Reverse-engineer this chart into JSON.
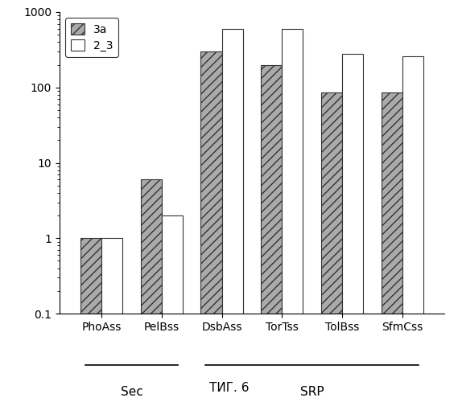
{
  "categories": [
    "PhoAss",
    "PelBss",
    "DsbAss",
    "TorTss",
    "TolBss",
    "SfmCss"
  ],
  "group_info": [
    {
      "label": "Sec",
      "start": 0,
      "end": 1
    },
    {
      "label": "SRP",
      "start": 2,
      "end": 5
    }
  ],
  "series": {
    "3a": [
      1,
      6,
      300,
      200,
      85,
      85
    ],
    "2_3": [
      1,
      2,
      600,
      600,
      280,
      260
    ]
  },
  "colors": {
    "3a": "#aaaaaa",
    "2_3": "#ffffff"
  },
  "bar_edgecolor": "#333333",
  "ylim": [
    0.1,
    1000
  ],
  "yticks": [
    0.1,
    1,
    10,
    100,
    1000
  ],
  "figsize": [
    5.69,
    5.0
  ],
  "dpi": 100,
  "caption": "ΤИГ. 6",
  "bar_width": 0.35,
  "hatch_pattern": "///"
}
